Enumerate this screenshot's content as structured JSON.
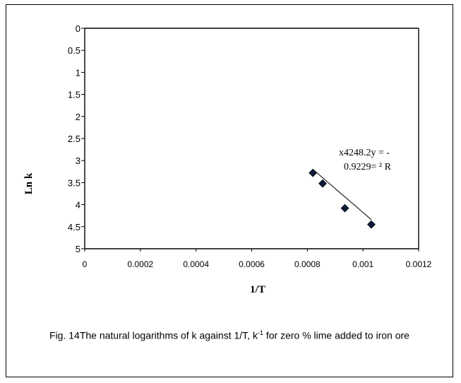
{
  "chart_data": {
    "type": "scatter",
    "xlabel": "1/T",
    "ylabel": "Ln k",
    "xlim": [
      0,
      0.0012
    ],
    "ylim": [
      0,
      5
    ],
    "y_inverted": true,
    "x_ticks": [
      "0",
      "0.0002",
      "0.0004",
      "0.0006",
      "0.0008",
      "0.001",
      "0.0012"
    ],
    "y_ticks": [
      "0",
      "0.5",
      "1",
      "1.5",
      "2",
      "2.5",
      "3",
      "3.5",
      "4",
      "4.5",
      "5"
    ],
    "x_tick_values": [
      0,
      0.0002,
      0.0004,
      0.0006,
      0.0008,
      0.001,
      0.0012
    ],
    "y_tick_values": [
      0,
      0.5,
      1,
      1.5,
      2,
      2.5,
      3,
      3.5,
      4,
      4.5,
      5
    ],
    "series": [
      {
        "x": [
          0.00082,
          0.000855,
          0.000935,
          0.00103
        ],
        "y": [
          3.28,
          3.52,
          4.08,
          4.45
        ]
      }
    ],
    "trendline": {
      "x": [
        0.00082,
        0.00103
      ],
      "y": [
        3.2,
        4.34
      ]
    },
    "annotation": {
      "line1": "x4248.2y = -",
      "line2": "0.9229= ² R"
    }
  },
  "caption": {
    "before_sup": "Fig. 14The natural logarithms of k against 1/T, k",
    "sup": "-1",
    "after_sup": " for zero % lime added to iron ore"
  },
  "colors": {
    "marker": "#0d1b3a",
    "axis": "#000000",
    "line": "#000000"
  }
}
